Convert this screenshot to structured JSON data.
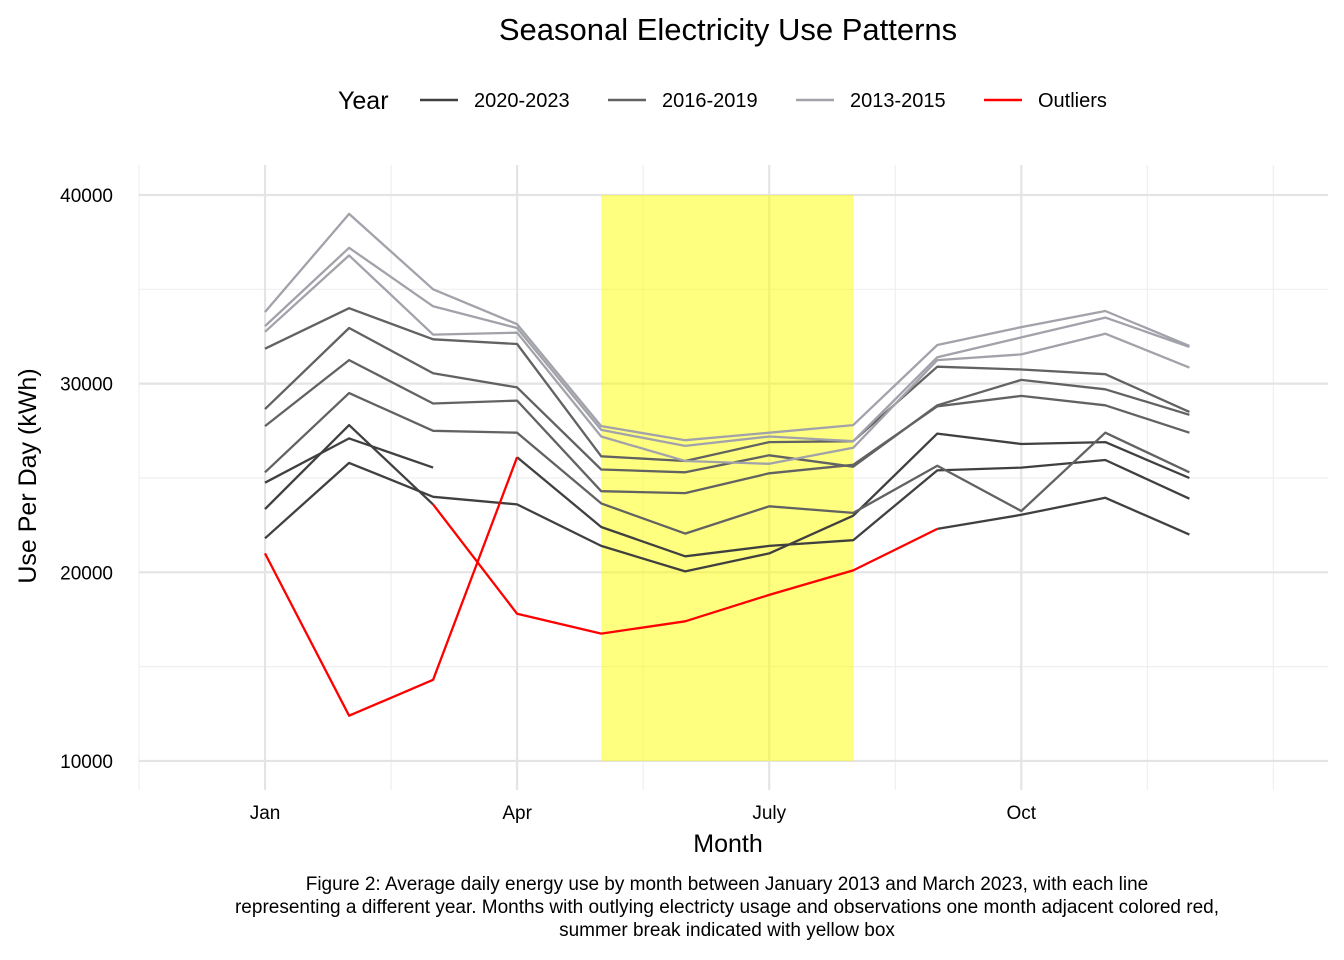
{
  "chart_data": {
    "type": "line",
    "title": "Seasonal Electricity Use Patterns",
    "legend_title": "Year",
    "xlabel": "Month",
    "ylabel": "Use Per Day (kWh)",
    "caption": [
      "Figure 2: Average daily energy use by month between January 2013 and March 2023, with each line",
      "representing a different year. Months with outlying electricty usage and observations one month adjacent colored red,",
      "summer break indicated with yellow box"
    ],
    "x": [
      1,
      2,
      3,
      4,
      5,
      6,
      7,
      8,
      9,
      10,
      11,
      12
    ],
    "xlim": [
      -0.5,
      13.65
    ],
    "xticks": [
      {
        "value": 1,
        "label": "Jan"
      },
      {
        "value": 4,
        "label": "Apr"
      },
      {
        "value": 7,
        "label": "July"
      },
      {
        "value": 10,
        "label": "Oct"
      }
    ],
    "xminor": [
      -0.5,
      2.5,
      5.5,
      8.5,
      11.5,
      13
    ],
    "ylim": [
      8460,
      41590
    ],
    "yticks": [
      10000,
      20000,
      30000,
      40000
    ],
    "yminor": [
      15000,
      25000,
      35000
    ],
    "grid": true,
    "legend_position": "top",
    "shaded_region": {
      "xmin": 5,
      "xmax": 8,
      "ymin": 10000,
      "ymax": 40000,
      "color": "#ffff00",
      "opacity": 0.5
    },
    "series": [
      {
        "name": "2020-2023",
        "color": "#404040",
        "lines": [
          [
            24750,
            27100,
            25550,
            null,
            null,
            null,
            null,
            null,
            null,
            null,
            null,
            null
          ],
          [
            23350,
            27800,
            23600,
            null,
            null,
            null,
            null,
            null,
            22300,
            23050,
            23950,
            22000
          ],
          [
            null,
            null,
            null,
            26100,
            22400,
            20850,
            21400,
            21700,
            25400,
            25550,
            25950,
            23900
          ],
          [
            21800,
            25800,
            24000,
            23600,
            21400,
            20050,
            21000,
            23000,
            27350,
            26800,
            26900,
            25000
          ]
        ]
      },
      {
        "name": "2016-2019",
        "color": "#626262",
        "lines": [
          [
            31850,
            34000,
            32350,
            32100,
            26150,
            25900,
            26900,
            26950,
            30900,
            30750,
            30500,
            28500
          ],
          [
            28650,
            32950,
            30550,
            29800,
            25450,
            25300,
            26200,
            25600,
            28850,
            30200,
            29700,
            28350
          ],
          [
            27750,
            31250,
            28950,
            29100,
            24300,
            24200,
            25250,
            25700,
            28800,
            29350,
            28850,
            27400
          ],
          [
            25300,
            29500,
            27500,
            27400,
            23650,
            22050,
            23500,
            23150,
            25650,
            23250,
            27400,
            25300
          ]
        ]
      },
      {
        "name": "2013-2015",
        "color": "#a2a2aa",
        "lines": [
          [
            33800,
            39000,
            35000,
            33150,
            27750,
            27000,
            27400,
            27800,
            32050,
            33000,
            33850,
            32000
          ],
          [
            33050,
            37200,
            34100,
            32950,
            27550,
            26700,
            27200,
            26950,
            31400,
            32450,
            33500,
            31950
          ],
          [
            32750,
            36800,
            32600,
            32700,
            27200,
            25900,
            25750,
            26600,
            31250,
            31550,
            32650,
            30850
          ]
        ]
      },
      {
        "name": "Outliers",
        "color": "#ff0000",
        "lines": [
          [
            21000,
            12400,
            14300,
            26100,
            null,
            null,
            null,
            null,
            null,
            null,
            null,
            null
          ],
          [
            null,
            null,
            23600,
            17800,
            16750,
            17400,
            18800,
            20100,
            22300,
            null,
            null,
            null
          ]
        ]
      }
    ]
  }
}
